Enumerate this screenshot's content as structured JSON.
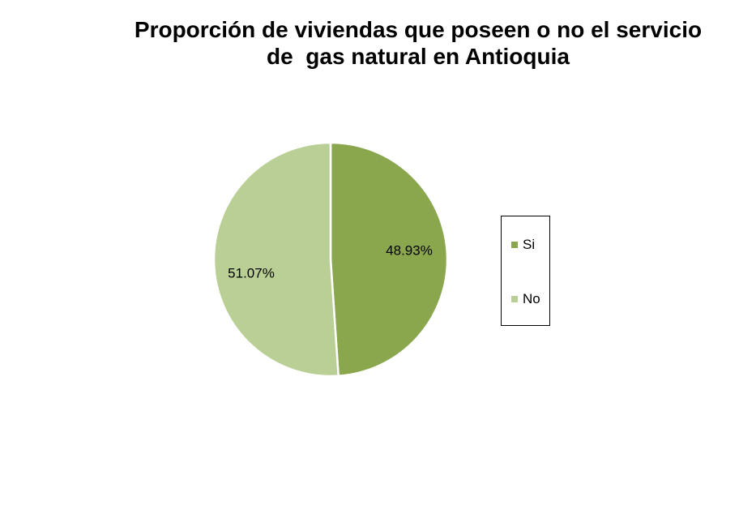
{
  "chart_data": {
    "type": "pie",
    "title": [
      "Proporción de viviendas que poseen o no el servicio",
      "de  gas natural en Antioquia"
    ],
    "categories": [
      "Si",
      "No"
    ],
    "values": [
      48.93,
      51.07
    ],
    "labels": [
      "48.93%",
      "51.07%"
    ],
    "colors": [
      "#8aa74e",
      "#b9cf96"
    ],
    "legend": "right"
  }
}
